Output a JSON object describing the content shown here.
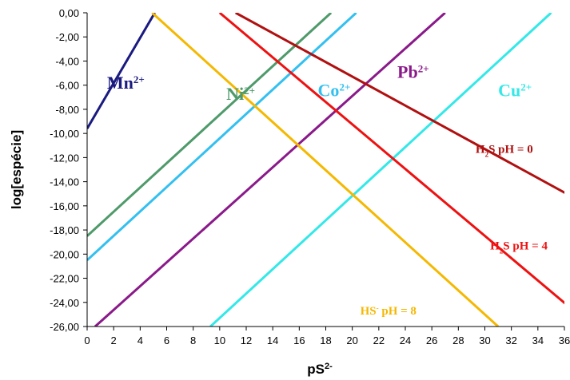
{
  "chart_data": {
    "type": "line",
    "xlabel": "pS",
    "xlabel_sup": "2-",
    "ylabel": "log[espécie]",
    "xlim": [
      0,
      36
    ],
    "ylim": [
      -26,
      0
    ],
    "x_ticks": [
      "0",
      "2",
      "4",
      "6",
      "8",
      "10",
      "12",
      "14",
      "16",
      "18",
      "20",
      "22",
      "24",
      "26",
      "28",
      "30",
      "32",
      "34",
      "36"
    ],
    "y_ticks": [
      "0,00",
      "-2,00",
      "-4,00",
      "-6,00",
      "-8,00",
      "-10,00",
      "-12,00",
      "-14,00",
      "-16,00",
      "-18,00",
      "-20,00",
      "-22,00",
      "-24,00",
      "-26,00"
    ],
    "grid": false,
    "series": [
      {
        "name": "Mn",
        "sup": "2+",
        "color": "#1a1a80",
        "label_size": 22,
        "label_at": [
          1.5,
          -6.3
        ],
        "x": [
          0,
          5.1
        ],
        "y": [
          -9.6,
          0
        ]
      },
      {
        "name": "Ni",
        "sup": "2+",
        "color": "#4e9a6a",
        "label_size": 22,
        "label_at": [
          10.5,
          -7.2
        ],
        "x": [
          0,
          18.4
        ],
        "y": [
          -18.5,
          0
        ]
      },
      {
        "name": "Co",
        "sup": "2+",
        "color": "#33c0f0",
        "label_size": 22,
        "label_at": [
          17.4,
          -6.9
        ],
        "x": [
          0,
          20.3
        ],
        "y": [
          -20.5,
          0
        ]
      },
      {
        "name": "Pb",
        "sup": "2+",
        "color": "#8a1a8a",
        "label_size": 22,
        "label_at": [
          23.4,
          -5.4
        ],
        "x": [
          0.6,
          27.0
        ],
        "y": [
          -26,
          0
        ]
      },
      {
        "name": "Cu",
        "sup": "2+",
        "color": "#33e8e8",
        "label_size": 22,
        "label_at": [
          31,
          -6.9
        ],
        "x": [
          9.3,
          35.0
        ],
        "y": [
          -26,
          0
        ]
      },
      {
        "name": "H",
        "sub": "2",
        "rest": "S pH = 0",
        "color": "#b01010",
        "label_size": 15,
        "label_at": [
          29.3,
          -11.6
        ],
        "x": [
          11.2,
          37.0
        ],
        "y": [
          0,
          -15.5
        ]
      },
      {
        "name": "H",
        "sub": "2",
        "rest": "S pH = 4",
        "color": "#ee1111",
        "label_size": 15,
        "label_at": [
          30.4,
          -19.6
        ],
        "x": [
          10.0,
          36.5
        ],
        "y": [
          0,
          -24.5
        ]
      },
      {
        "name": "HS",
        "sup": "-",
        "rest": " pH = 8",
        "color": "#f5b800",
        "label_size": 15,
        "label_at": [
          20.6,
          -25.0
        ],
        "x": [
          4.9,
          31.0
        ],
        "y": [
          0,
          -26
        ]
      }
    ]
  }
}
